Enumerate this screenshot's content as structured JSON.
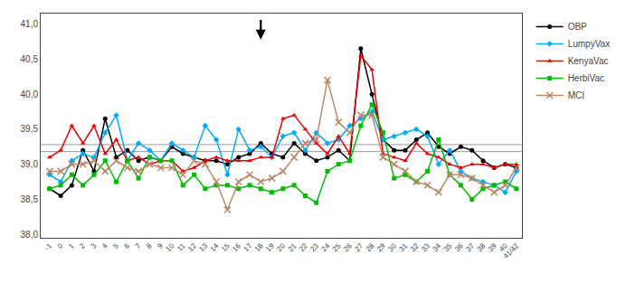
{
  "chart_data": {
    "type": "line",
    "categories": [
      "-1",
      "0",
      "1",
      "2",
      "3",
      "4",
      "5",
      "6",
      "7",
      "8",
      "9",
      "10",
      "11",
      "12",
      "13",
      "14",
      "15",
      "16",
      "17",
      "18",
      "19",
      "20",
      "21",
      "22",
      "23",
      "24",
      "25",
      "26",
      "27",
      "28",
      "29",
      "30",
      "31",
      "32",
      "33",
      "34",
      "35",
      "36",
      "37",
      "38",
      "39",
      "40",
      "41/42"
    ],
    "series": [
      {
        "name": "OBP",
        "color": "#000000",
        "marker": "circle",
        "values": [
          38.65,
          38.55,
          38.7,
          39.2,
          38.9,
          39.65,
          39.1,
          39.2,
          39.05,
          39.1,
          39.05,
          39.25,
          39.15,
          39.1,
          39.05,
          39.05,
          39.0,
          39.1,
          39.15,
          39.3,
          39.15,
          39.1,
          39.3,
          39.15,
          39.05,
          39.1,
          39.2,
          39.05,
          40.65,
          40.0,
          39.35,
          39.2,
          39.2,
          39.35,
          39.45,
          39.25,
          39.15,
          39.25,
          39.2,
          39.05,
          38.95,
          39.0,
          38.95
        ]
      },
      {
        "name": "LumpyVax",
        "color": "#00aaff",
        "marker": "diamond",
        "values": [
          38.85,
          38.75,
          39.05,
          39.15,
          39.1,
          39.45,
          39.7,
          39.05,
          39.3,
          39.2,
          39.05,
          39.3,
          39.2,
          39.1,
          39.55,
          39.35,
          38.85,
          39.5,
          39.2,
          39.25,
          39.1,
          39.4,
          39.45,
          39.2,
          39.45,
          39.3,
          39.35,
          39.55,
          39.65,
          39.75,
          39.35,
          39.4,
          39.45,
          39.5,
          39.4,
          39.0,
          39.2,
          38.9,
          38.8,
          38.75,
          38.7,
          38.6,
          38.9
        ]
      },
      {
        "name": "KenyaVac",
        "color": "#ee0000",
        "marker": "triangle-up",
        "values": [
          39.1,
          39.2,
          39.55,
          39.3,
          39.55,
          39.15,
          39.35,
          39.05,
          39.1,
          39.0,
          39.05,
          39.05,
          38.9,
          38.95,
          39.05,
          39.1,
          39.05,
          39.05,
          39.05,
          39.1,
          39.1,
          39.65,
          39.7,
          39.5,
          39.3,
          39.15,
          39.4,
          39.15,
          40.55,
          40.35,
          39.15,
          39.1,
          39.05,
          39.3,
          39.15,
          39.1,
          39.0,
          38.95,
          39.0,
          39.0,
          38.95,
          39.0,
          39.0
        ]
      },
      {
        "name": "HerbiVac",
        "color": "#00bb00",
        "marker": "square",
        "values": [
          38.65,
          38.7,
          38.85,
          38.7,
          38.85,
          39.05,
          38.75,
          39.05,
          38.8,
          39.1,
          39.05,
          39.05,
          38.7,
          38.85,
          38.65,
          38.7,
          38.7,
          38.65,
          38.7,
          38.65,
          38.6,
          38.65,
          38.7,
          38.55,
          38.45,
          38.9,
          39.0,
          39.05,
          39.55,
          39.85,
          39.45,
          38.8,
          38.85,
          38.75,
          38.9,
          39.35,
          38.85,
          38.7,
          38.5,
          38.65,
          38.7,
          38.75,
          38.65
        ]
      },
      {
        "name": "MCI",
        "color": "#bb8866",
        "marker": "x",
        "values": [
          38.9,
          38.9,
          39.0,
          39.0,
          39.05,
          38.9,
          39.05,
          38.95,
          38.9,
          39.0,
          38.95,
          38.95,
          38.85,
          39.05,
          39.0,
          38.75,
          38.35,
          38.75,
          38.85,
          38.75,
          38.8,
          38.9,
          39.1,
          39.3,
          39.35,
          40.2,
          39.6,
          39.45,
          39.7,
          39.7,
          39.1,
          39.0,
          38.9,
          38.75,
          38.7,
          38.6,
          38.85,
          38.85,
          38.8,
          38.7,
          38.6,
          38.7,
          38.95
        ]
      }
    ],
    "ylim": [
      37.95,
      41.15
    ],
    "yticks": [
      {
        "value": 38.0,
        "label": "38,0"
      },
      {
        "value": 38.5,
        "label": "38,5"
      },
      {
        "value": 39.0,
        "label": "39,0"
      },
      {
        "value": 39.5,
        "label": "39,5"
      },
      {
        "value": 40.0,
        "label": "40,0"
      },
      {
        "value": 40.5,
        "label": "40,5"
      },
      {
        "value": 41.0,
        "label": "41,0"
      }
    ],
    "hlines": [
      39.18,
      39.28
    ],
    "hline_color": "#999999",
    "arrow": {
      "x": "18",
      "y_start": 41.08,
      "y_end": 40.78,
      "color": "#000000"
    },
    "grid": false,
    "legend": "right"
  }
}
